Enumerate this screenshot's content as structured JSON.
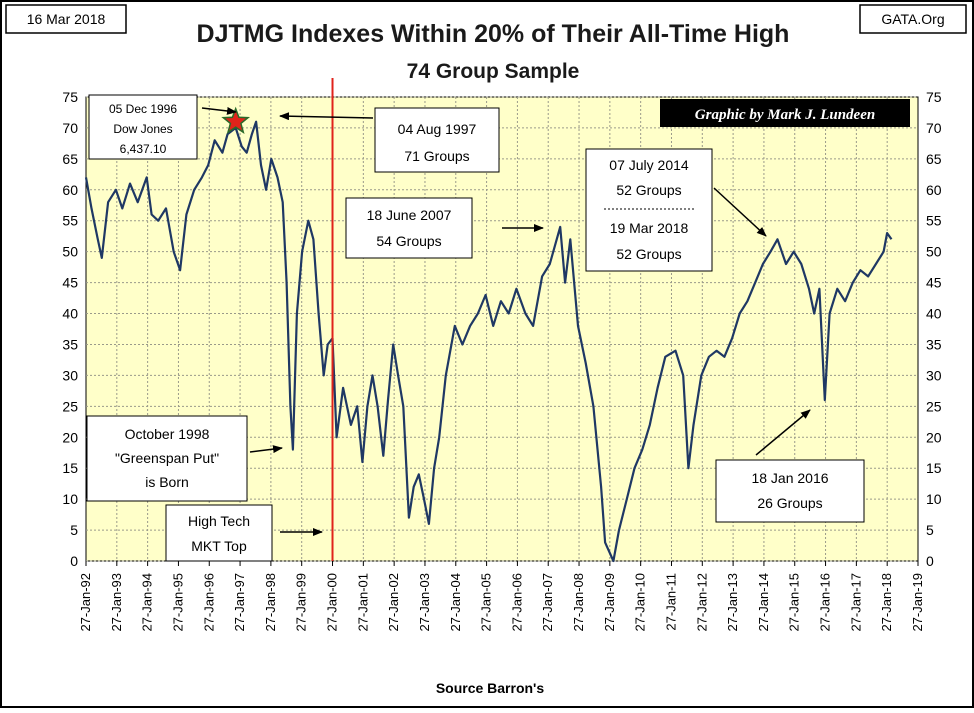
{
  "header": {
    "date": "16 Mar 2018",
    "source_site": "GATA.Org",
    "title": "DJTMG Indexes Within 20% of Their All-Time High",
    "subtitle": "74 Group Sample",
    "credit": "Graphic by Mark J. Lundeen"
  },
  "colors": {
    "plot_background": "#FFFFC9",
    "series_line": "#1F3864",
    "marker_line": "#E0231B",
    "star": "#E0231B",
    "credit_background": "#000000"
  },
  "annotations": {
    "dow_1996": {
      "line1": "05 Dec 1996",
      "line2": "Dow Jones",
      "line3": "6,437.10"
    },
    "peak_1997": {
      "line1": "04 Aug 1997",
      "line2": "71 Groups"
    },
    "peak_2007": {
      "line1": "18 June 2007",
      "line2": "54 Groups"
    },
    "peak_2014_2018": {
      "line1": "07 July 2014",
      "line2": "52 Groups",
      "line3": "19 Mar 2018",
      "line4": "52 Groups"
    },
    "greenspan_1998": {
      "line1": "October 1998",
      "line2": "\"Greenspan Put\"",
      "line3": "is Born"
    },
    "tech_top": {
      "line1": "High Tech",
      "line2": "MKT Top"
    },
    "low_2016": {
      "line1": "18 Jan 2016",
      "line2": "26 Groups"
    }
  },
  "chart_data": {
    "type": "line",
    "title": "DJTMG Indexes Within 20% of Their All-Time High",
    "subtitle": "74 Group Sample",
    "xlabel": "Source Barron's",
    "ylabel": "",
    "ylim": [
      0,
      75
    ],
    "yticks": [
      0,
      5,
      10,
      15,
      20,
      25,
      30,
      35,
      40,
      45,
      50,
      55,
      60,
      65,
      70,
      75
    ],
    "xlim": [
      "1992-01-27",
      "2019-01-27"
    ],
    "xticks": [
      "27-Jan-92",
      "27-Jan-93",
      "27-Jan-94",
      "27-Jan-95",
      "27-Jan-96",
      "27-Jan-97",
      "27-Jan-98",
      "27-Jan-99",
      "27-Jan-00",
      "27-Jan-01",
      "27-Jan-02",
      "27-Jan-03",
      "27-Jan-04",
      "27-Jan-05",
      "27-Jan-06",
      "27-Jan-07",
      "27-Jan-08",
      "27-Jan-09",
      "27-Jan-10",
      "27-Jan-11",
      "27-Jan-12",
      "27-Jan-13",
      "27-Jan-14",
      "27-Jan-15",
      "27-Jan-16",
      "27-Jan-17",
      "27-Jan-18",
      "27-Jan-19"
    ],
    "grid": true,
    "vertical_marker": {
      "x": "2000-01-27"
    },
    "star_marker": {
      "x": "1996-12-05",
      "y": 71
    },
    "series": [
      {
        "values": [
          [
            "1992-01-27",
            62
          ],
          [
            "1992-04-01",
            57
          ],
          [
            "1992-06-15",
            52
          ],
          [
            "1992-08-01",
            49
          ],
          [
            "1992-10-15",
            58
          ],
          [
            "1993-01-15",
            60
          ],
          [
            "1993-04-01",
            57
          ],
          [
            "1993-07-01",
            61
          ],
          [
            "1993-10-01",
            58
          ],
          [
            "1994-01-15",
            62
          ],
          [
            "1994-03-15",
            56
          ],
          [
            "1994-06-01",
            55
          ],
          [
            "1994-09-01",
            57
          ],
          [
            "1994-12-01",
            50
          ],
          [
            "1995-02-15",
            47
          ],
          [
            "1995-05-01",
            56
          ],
          [
            "1995-08-01",
            60
          ],
          [
            "1995-11-01",
            62
          ],
          [
            "1996-01-15",
            64
          ],
          [
            "1996-04-01",
            68
          ],
          [
            "1996-07-01",
            66
          ],
          [
            "1996-09-01",
            69
          ],
          [
            "1996-12-05",
            70
          ],
          [
            "1997-02-15",
            67
          ],
          [
            "1997-04-15",
            66
          ],
          [
            "1997-06-15",
            69
          ],
          [
            "1997-08-04",
            71
          ],
          [
            "1997-10-01",
            64
          ],
          [
            "1997-12-01",
            60
          ],
          [
            "1998-02-01",
            65
          ],
          [
            "1998-04-15",
            62
          ],
          [
            "1998-06-15",
            58
          ],
          [
            "1998-08-01",
            45
          ],
          [
            "1998-09-15",
            25
          ],
          [
            "1998-10-15",
            18
          ],
          [
            "1998-12-01",
            40
          ],
          [
            "1999-02-01",
            50
          ],
          [
            "1999-04-15",
            55
          ],
          [
            "1999-06-15",
            52
          ],
          [
            "1999-08-15",
            40
          ],
          [
            "1999-10-15",
            30
          ],
          [
            "1999-12-01",
            35
          ],
          [
            "2000-01-27",
            36
          ],
          [
            "2000-03-15",
            20
          ],
          [
            "2000-06-01",
            28
          ],
          [
            "2000-09-01",
            22
          ],
          [
            "2000-11-15",
            25
          ],
          [
            "2001-01-15",
            16
          ],
          [
            "2001-03-15",
            25
          ],
          [
            "2001-05-15",
            30
          ],
          [
            "2001-07-15",
            25
          ],
          [
            "2001-09-20",
            17
          ],
          [
            "2001-11-15",
            26
          ],
          [
            "2002-01-15",
            35
          ],
          [
            "2002-03-15",
            30
          ],
          [
            "2002-05-15",
            25
          ],
          [
            "2002-07-20",
            7
          ],
          [
            "2002-09-15",
            12
          ],
          [
            "2002-11-15",
            14
          ],
          [
            "2003-01-15",
            10
          ],
          [
            "2003-03-15",
            6
          ],
          [
            "2003-05-15",
            15
          ],
          [
            "2003-07-15",
            20
          ],
          [
            "2003-10-01",
            30
          ],
          [
            "2004-01-15",
            38
          ],
          [
            "2004-04-15",
            35
          ],
          [
            "2004-07-15",
            38
          ],
          [
            "2004-10-15",
            40
          ],
          [
            "2005-01-15",
            43
          ],
          [
            "2005-04-15",
            38
          ],
          [
            "2005-07-15",
            42
          ],
          [
            "2005-10-15",
            40
          ],
          [
            "2006-01-15",
            44
          ],
          [
            "2006-05-01",
            40
          ],
          [
            "2006-08-01",
            38
          ],
          [
            "2006-11-15",
            46
          ],
          [
            "2007-02-15",
            48
          ],
          [
            "2007-06-18",
            54
          ],
          [
            "2007-08-15",
            45
          ],
          [
            "2007-10-15",
            52
          ],
          [
            "2008-01-15",
            38
          ],
          [
            "2008-04-15",
            32
          ],
          [
            "2008-07-15",
            25
          ],
          [
            "2008-10-15",
            12
          ],
          [
            "2008-12-01",
            3
          ],
          [
            "2009-03-09",
            0
          ],
          [
            "2009-05-15",
            5
          ],
          [
            "2009-08-15",
            10
          ],
          [
            "2009-11-15",
            15
          ],
          [
            "2010-02-15",
            18
          ],
          [
            "2010-05-15",
            22
          ],
          [
            "2010-08-15",
            28
          ],
          [
            "2010-11-15",
            33
          ],
          [
            "2011-03-15",
            34
          ],
          [
            "2011-06-15",
            30
          ],
          [
            "2011-08-15",
            15
          ],
          [
            "2011-10-15",
            22
          ],
          [
            "2012-01-15",
            30
          ],
          [
            "2012-04-15",
            33
          ],
          [
            "2012-07-15",
            34
          ],
          [
            "2012-10-15",
            33
          ],
          [
            "2013-01-15",
            36
          ],
          [
            "2013-04-15",
            40
          ],
          [
            "2013-07-15",
            42
          ],
          [
            "2013-10-15",
            45
          ],
          [
            "2014-01-15",
            48
          ],
          [
            "2014-04-15",
            50
          ],
          [
            "2014-07-07",
            52
          ],
          [
            "2014-10-15",
            48
          ],
          [
            "2015-01-15",
            50
          ],
          [
            "2015-04-15",
            48
          ],
          [
            "2015-07-15",
            44
          ],
          [
            "2015-09-15",
            40
          ],
          [
            "2015-11-15",
            44
          ],
          [
            "2016-01-18",
            26
          ],
          [
            "2016-03-15",
            40
          ],
          [
            "2016-06-15",
            44
          ],
          [
            "2016-09-15",
            42
          ],
          [
            "2016-12-15",
            45
          ],
          [
            "2017-03-15",
            47
          ],
          [
            "2017-06-15",
            46
          ],
          [
            "2017-09-15",
            48
          ],
          [
            "2017-12-15",
            50
          ],
          [
            "2018-01-26",
            53
          ],
          [
            "2018-03-19",
            52
          ]
        ]
      }
    ]
  }
}
